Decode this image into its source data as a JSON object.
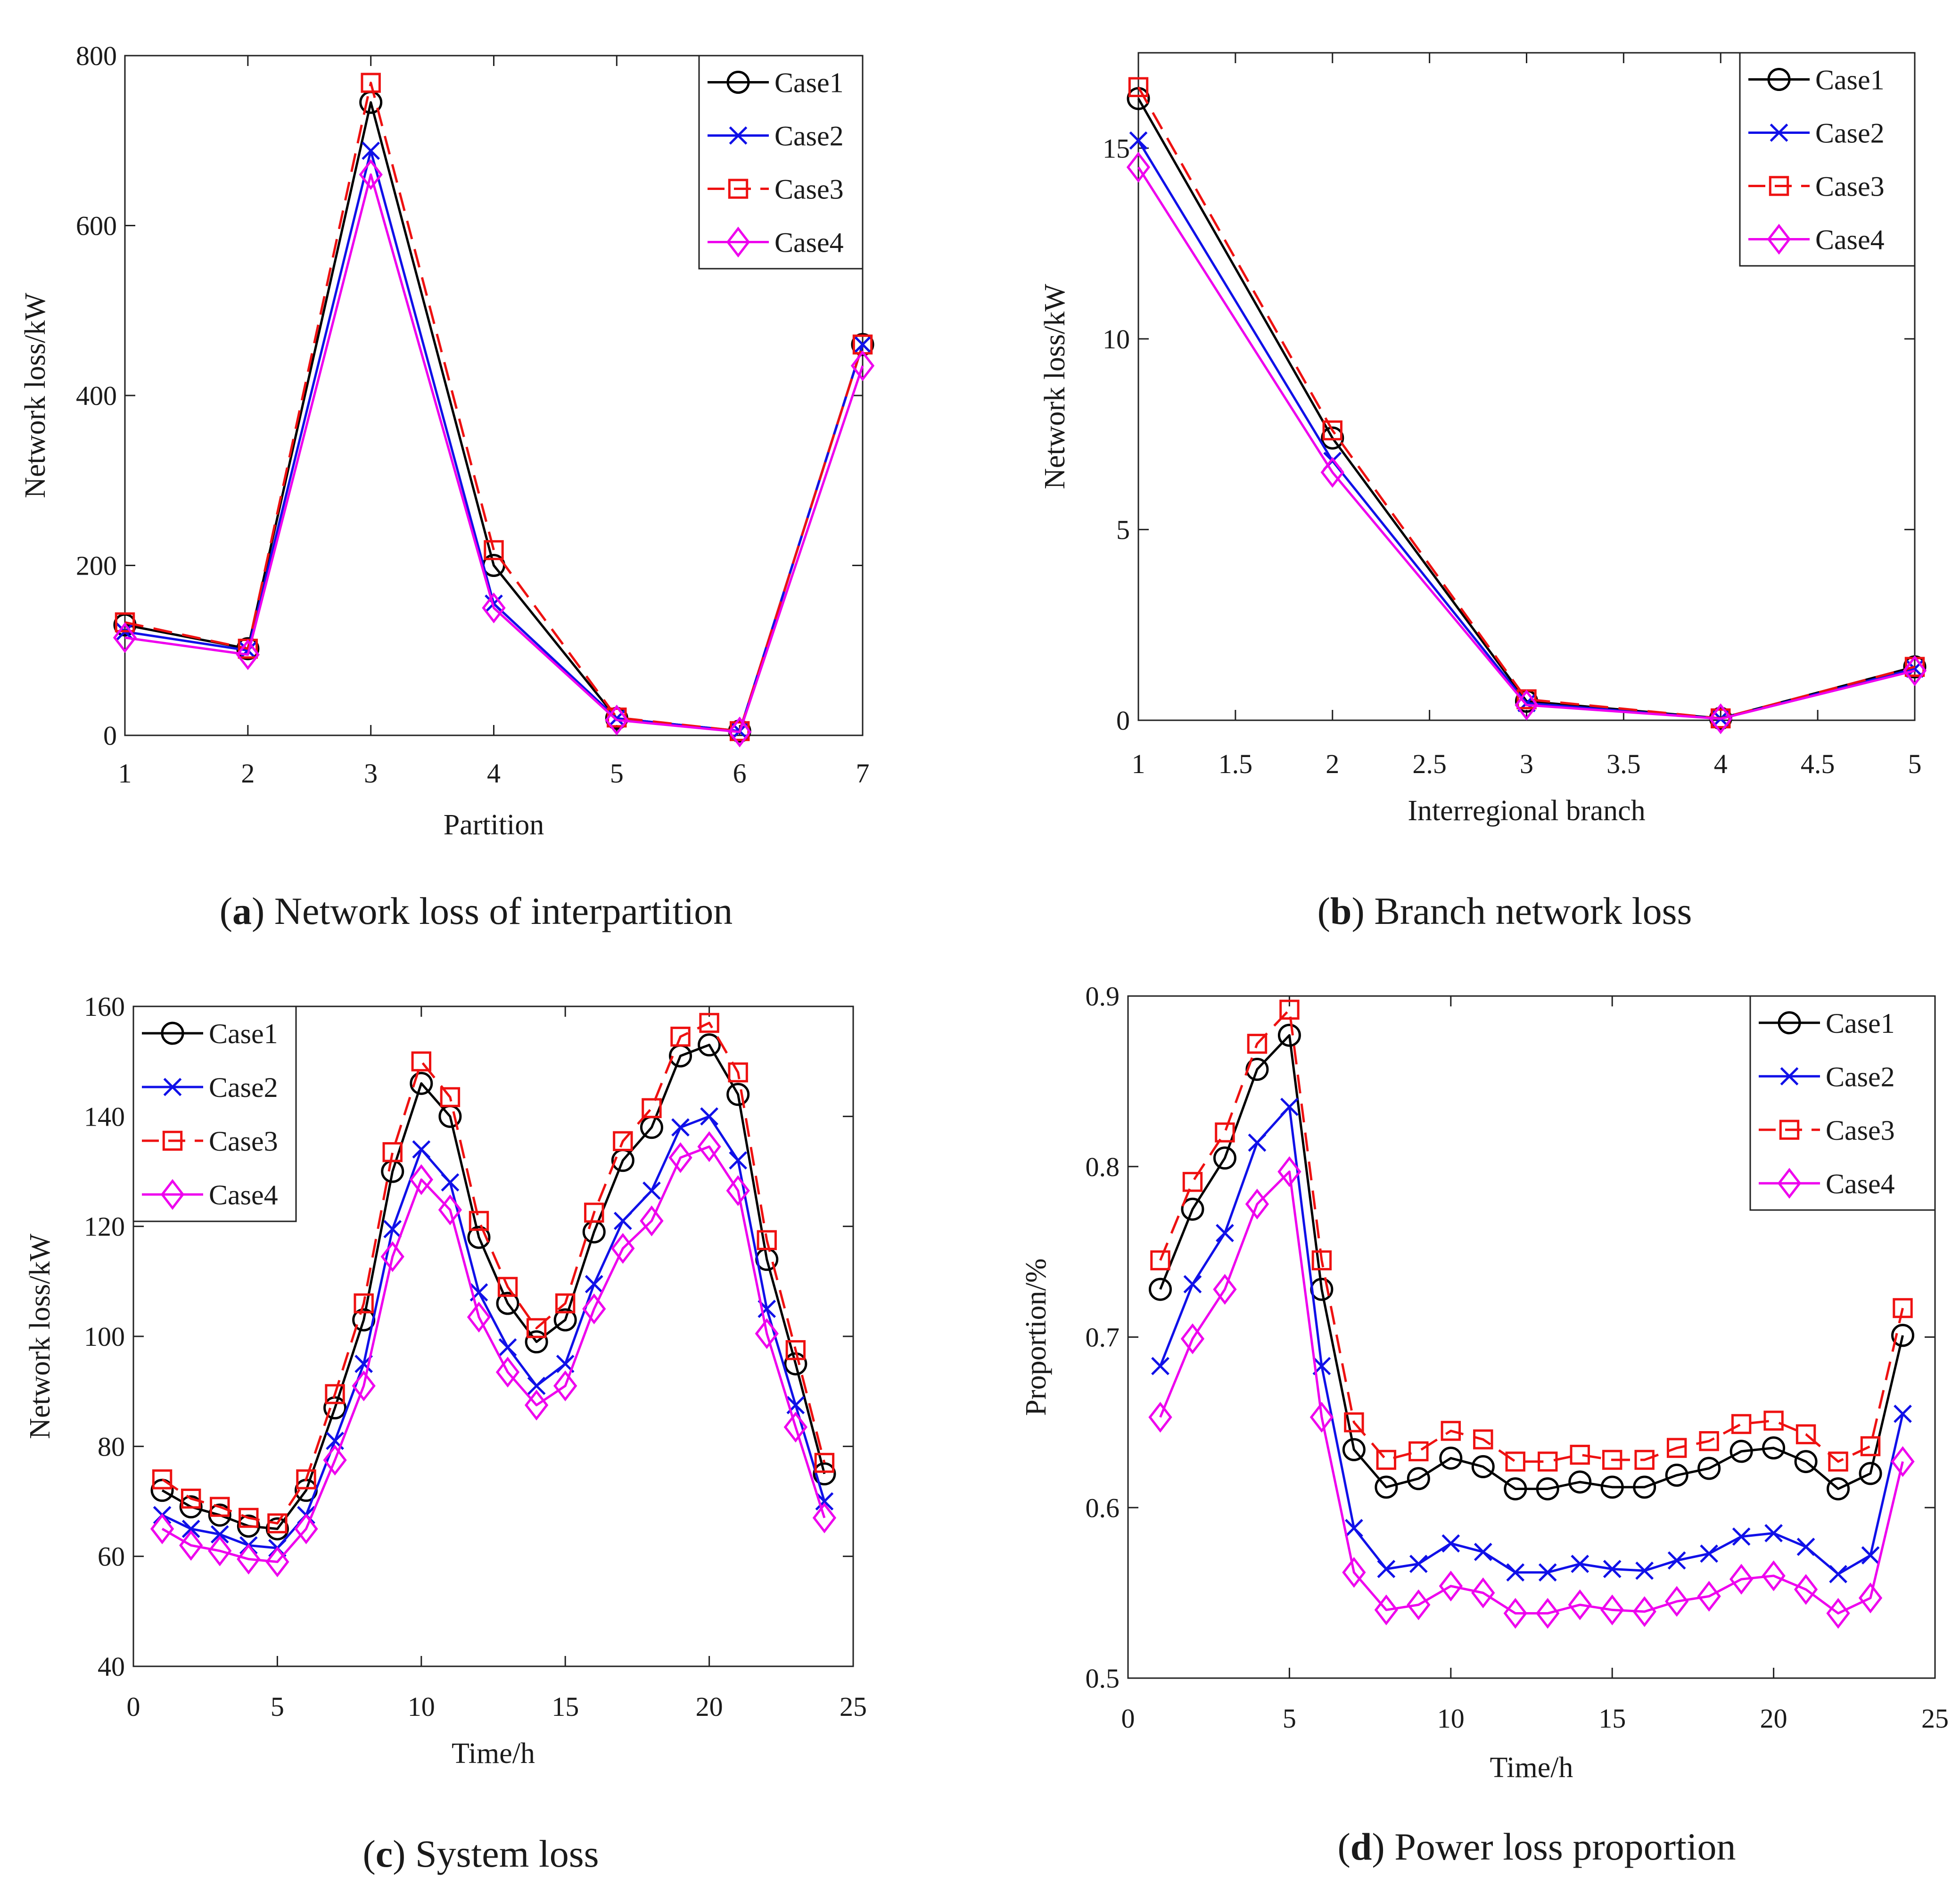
{
  "styles": {
    "Case1": {
      "color": "#000000",
      "marker": "circle",
      "dash": "none"
    },
    "Case2": {
      "color": "#1010e8",
      "marker": "x",
      "dash": "none"
    },
    "Case3": {
      "color": "#ee1111",
      "marker": "square",
      "dash": "dashed"
    },
    "Case4": {
      "color": "#ee00ee",
      "marker": "diamond",
      "dash": "none"
    }
  },
  "chart_data": [
    {
      "id": "a",
      "type": "line",
      "caption_letter": "a",
      "caption_text": " Network loss of interpartition",
      "xlabel": "Partition",
      "ylabel": "Network loss/kW",
      "xlim": [
        1,
        7
      ],
      "ylim": [
        0,
        800
      ],
      "xticks": [
        1,
        2,
        3,
        4,
        5,
        6,
        7
      ],
      "yticks": [
        0,
        200,
        400,
        600,
        800
      ],
      "legend_position": "top-right",
      "series": [
        {
          "name": "Case1",
          "x": [
            1,
            2,
            3,
            4,
            5,
            6,
            7
          ],
          "values": [
            130,
            102,
            745,
            200,
            20,
            5,
            460
          ]
        },
        {
          "name": "Case2",
          "x": [
            1,
            2,
            3,
            4,
            5,
            6,
            7
          ],
          "values": [
            122,
            100,
            688,
            155,
            20,
            5,
            460
          ]
        },
        {
          "name": "Case3",
          "x": [
            1,
            2,
            3,
            4,
            5,
            6,
            7
          ],
          "values": [
            133,
            102,
            768,
            218,
            21,
            5,
            460
          ]
        },
        {
          "name": "Case4",
          "x": [
            1,
            2,
            3,
            4,
            5,
            6,
            7
          ],
          "values": [
            115,
            95,
            660,
            150,
            18,
            4,
            435
          ]
        }
      ]
    },
    {
      "id": "b",
      "type": "line",
      "caption_letter": "b",
      "caption_text": " Branch network loss",
      "xlabel": "Interregional branch",
      "ylabel": "Network loss/kW",
      "xlim": [
        1,
        5
      ],
      "ylim": [
        0,
        17.5
      ],
      "xticks": [
        1,
        1.5,
        2,
        2.5,
        3,
        3.5,
        4,
        4.5,
        5
      ],
      "yticks": [
        0,
        5,
        10,
        15
      ],
      "legend_position": "top-right",
      "series": [
        {
          "name": "Case1",
          "x": [
            1,
            2,
            3,
            4,
            5
          ],
          "values": [
            16.3,
            7.4,
            0.5,
            0.05,
            1.4
          ]
        },
        {
          "name": "Case2",
          "x": [
            1,
            2,
            3,
            4,
            5
          ],
          "values": [
            15.2,
            6.8,
            0.45,
            0.04,
            1.35
          ]
        },
        {
          "name": "Case3",
          "x": [
            1,
            2,
            3,
            4,
            5
          ],
          "values": [
            16.6,
            7.6,
            0.55,
            0.05,
            1.4
          ]
        },
        {
          "name": "Case4",
          "x": [
            1,
            2,
            3,
            4,
            5
          ],
          "values": [
            14.5,
            6.5,
            0.4,
            0.04,
            1.3
          ]
        }
      ]
    },
    {
      "id": "c",
      "type": "line",
      "caption_letter": "c",
      "caption_text": " System loss",
      "xlabel": "Time/h",
      "ylabel": "Network loss/kW",
      "xlim": [
        0,
        25
      ],
      "ylim": [
        40,
        160
      ],
      "xticks": [
        0,
        5,
        10,
        15,
        20,
        25
      ],
      "yticks": [
        40,
        60,
        80,
        100,
        120,
        140,
        160
      ],
      "legend_position": "top-left",
      "series": [
        {
          "name": "Case1",
          "x": [
            1,
            2,
            3,
            4,
            5,
            6,
            7,
            8,
            9,
            10,
            11,
            12,
            13,
            14,
            15,
            16,
            17,
            18,
            19,
            20,
            21,
            22,
            23,
            24
          ],
          "values": [
            72,
            69,
            67.5,
            65.5,
            65,
            72,
            87,
            103,
            130,
            146,
            140,
            118,
            106,
            99,
            103,
            119,
            132,
            138,
            151,
            153,
            144,
            114,
            95,
            75
          ]
        },
        {
          "name": "Case2",
          "x": [
            1,
            2,
            3,
            4,
            5,
            6,
            7,
            8,
            9,
            10,
            11,
            12,
            13,
            14,
            15,
            16,
            17,
            18,
            19,
            20,
            21,
            22,
            23,
            24
          ],
          "values": [
            67.5,
            65,
            64,
            62,
            61.5,
            67.5,
            81,
            95,
            119.5,
            134,
            128,
            108,
            98,
            91,
            95,
            109.5,
            121,
            126.5,
            138,
            140,
            132,
            105,
            87.5,
            70
          ]
        },
        {
          "name": "Case3",
          "x": [
            1,
            2,
            3,
            4,
            5,
            6,
            7,
            8,
            9,
            10,
            11,
            12,
            13,
            14,
            15,
            16,
            17,
            18,
            19,
            20,
            21,
            22,
            23,
            24
          ],
          "values": [
            74,
            70.5,
            69,
            67,
            66,
            74,
            89.5,
            106,
            133.5,
            150,
            143.5,
            121,
            109,
            101.5,
            106,
            122.5,
            135.5,
            141.5,
            154.5,
            157,
            148,
            117.5,
            97.5,
            77
          ]
        },
        {
          "name": "Case4",
          "x": [
            1,
            2,
            3,
            4,
            5,
            6,
            7,
            8,
            9,
            10,
            11,
            12,
            13,
            14,
            15,
            16,
            17,
            18,
            19,
            20,
            21,
            22,
            23,
            24
          ],
          "values": [
            65,
            62,
            61,
            59.5,
            59,
            65,
            77.5,
            91,
            114.5,
            128.5,
            123,
            103.5,
            93.5,
            87.5,
            91,
            105,
            116,
            121,
            132.5,
            134.5,
            126.5,
            100.5,
            83.5,
            67
          ]
        }
      ]
    },
    {
      "id": "d",
      "type": "line",
      "caption_letter": "d",
      "caption_text": " Power loss proportion",
      "xlabel": "Time/h",
      "ylabel": "Proportion/%",
      "xlim": [
        0,
        25
      ],
      "ylim": [
        0.5,
        0.9
      ],
      "xticks": [
        0,
        5,
        10,
        15,
        20,
        25
      ],
      "yticks": [
        0.5,
        0.6,
        0.7,
        0.8,
        0.9
      ],
      "legend_position": "top-right",
      "series": [
        {
          "name": "Case1",
          "x": [
            1,
            2,
            3,
            4,
            5,
            6,
            7,
            8,
            9,
            10,
            11,
            12,
            13,
            14,
            15,
            16,
            17,
            18,
            19,
            20,
            21,
            22,
            23,
            24
          ],
          "values": [
            0.728,
            0.775,
            0.805,
            0.857,
            0.877,
            0.728,
            0.634,
            0.612,
            0.617,
            0.629,
            0.624,
            0.611,
            0.611,
            0.615,
            0.612,
            0.612,
            0.619,
            0.623,
            0.633,
            0.635,
            0.627,
            0.611,
            0.62,
            0.701
          ]
        },
        {
          "name": "Case2",
          "x": [
            1,
            2,
            3,
            4,
            5,
            6,
            7,
            8,
            9,
            10,
            11,
            12,
            13,
            14,
            15,
            16,
            17,
            18,
            19,
            20,
            21,
            22,
            23,
            24
          ],
          "values": [
            0.683,
            0.731,
            0.761,
            0.814,
            0.835,
            0.683,
            0.588,
            0.564,
            0.567,
            0.579,
            0.574,
            0.562,
            0.562,
            0.567,
            0.564,
            0.563,
            0.569,
            0.573,
            0.583,
            0.585,
            0.577,
            0.561,
            0.572,
            0.655
          ]
        },
        {
          "name": "Case3",
          "x": [
            1,
            2,
            3,
            4,
            5,
            6,
            7,
            8,
            9,
            10,
            11,
            12,
            13,
            14,
            15,
            16,
            17,
            18,
            19,
            20,
            21,
            22,
            23,
            24
          ],
          "values": [
            0.745,
            0.791,
            0.82,
            0.872,
            0.892,
            0.745,
            0.65,
            0.628,
            0.633,
            0.645,
            0.64,
            0.627,
            0.627,
            0.631,
            0.628,
            0.628,
            0.635,
            0.639,
            0.649,
            0.651,
            0.643,
            0.627,
            0.636,
            0.717
          ]
        },
        {
          "name": "Case4",
          "x": [
            1,
            2,
            3,
            4,
            5,
            6,
            7,
            8,
            9,
            10,
            11,
            12,
            13,
            14,
            15,
            16,
            17,
            18,
            19,
            20,
            21,
            22,
            23,
            24
          ],
          "values": [
            0.653,
            0.699,
            0.728,
            0.778,
            0.797,
            0.653,
            0.562,
            0.54,
            0.543,
            0.554,
            0.55,
            0.538,
            0.538,
            0.543,
            0.54,
            0.539,
            0.545,
            0.548,
            0.558,
            0.56,
            0.552,
            0.538,
            0.547,
            0.627
          ]
        }
      ]
    }
  ]
}
